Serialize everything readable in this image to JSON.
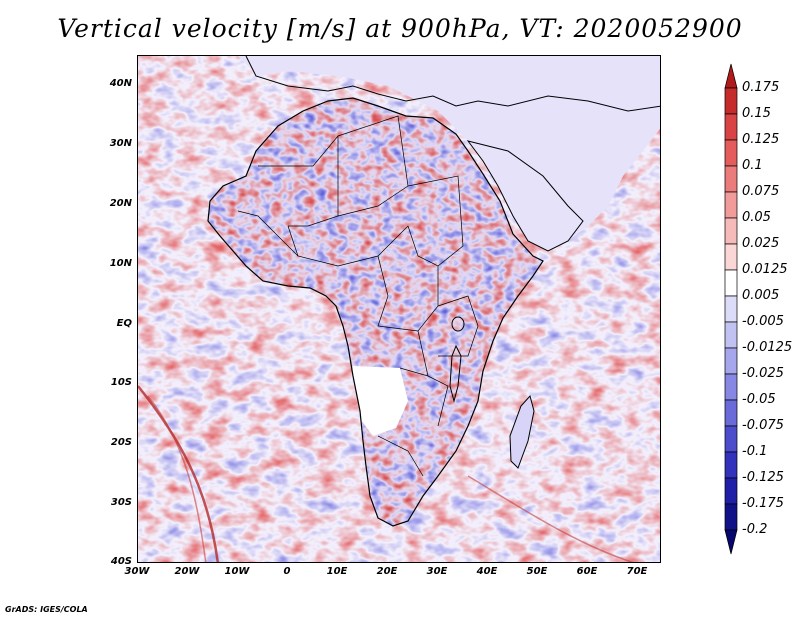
{
  "title": "Vertical velocity [m/s] at 900hPa, VT: 2020052900",
  "credit": "GrADS: IGES/COLA",
  "y_axis_labels": [
    "40N",
    "30N",
    "20N",
    "10N",
    "EQ",
    "10S",
    "20S",
    "30S",
    "40S"
  ],
  "x_axis_labels": [
    "30W",
    "20W",
    "10W",
    "0",
    "10E",
    "20E",
    "30E",
    "40E",
    "50E",
    "60E",
    "70E"
  ],
  "colorbar": {
    "labels": [
      "0.175",
      "0.15",
      "0.125",
      "0.1",
      "0.075",
      "0.05",
      "0.025",
      "0.0125",
      "0.005",
      "-0.005",
      "-0.0125",
      "-0.025",
      "-0.05",
      "-0.075",
      "-0.1",
      "-0.125",
      "-0.175",
      "-0.2"
    ],
    "colors": [
      "#b11a1a",
      "#c62b2b",
      "#d94343",
      "#e45c5c",
      "#ec7b7b",
      "#f29b9b",
      "#f6baba",
      "#fad6d6",
      "#ffffff",
      "#dcdcf8",
      "#c2c2f2",
      "#a6a6ec",
      "#8787e4",
      "#6a6ad9",
      "#4c4ccd",
      "#3232bd",
      "#1f1fa8",
      "#121288",
      "#060670"
    ]
  },
  "map": {
    "region": "Africa",
    "lon_range": [
      -30,
      75
    ],
    "lat_range": [
      -40,
      45
    ]
  }
}
